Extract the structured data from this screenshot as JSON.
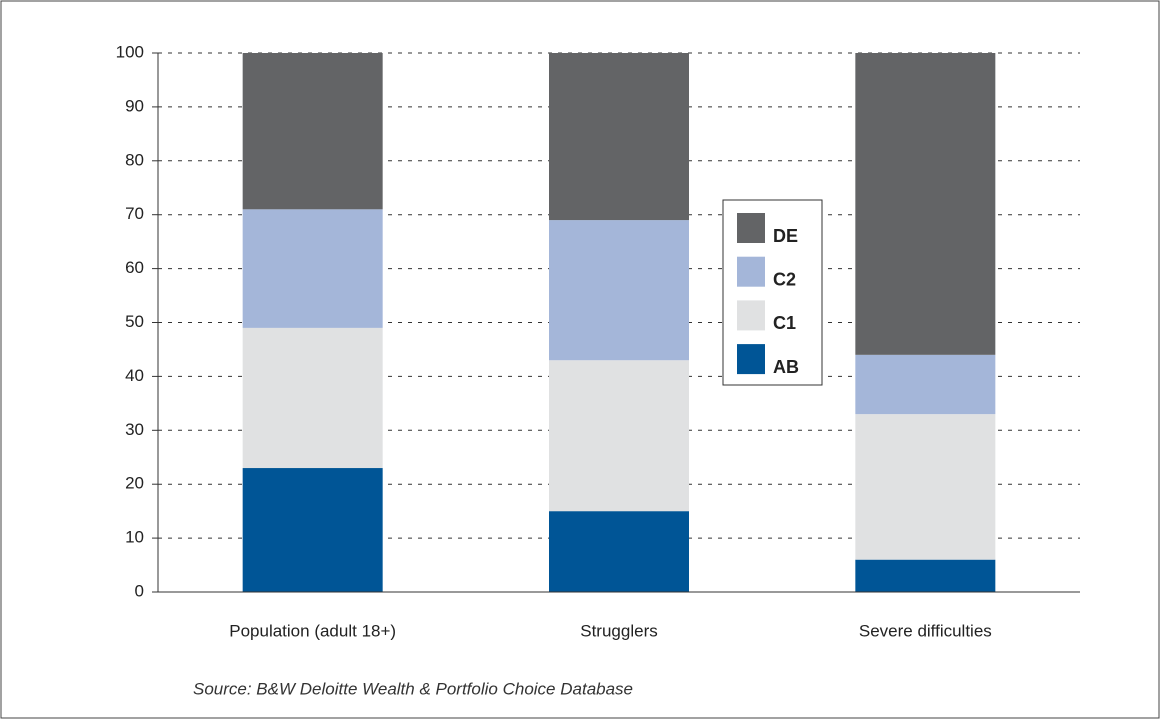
{
  "chart_data": {
    "type": "stacked_bar",
    "categories": [
      "Population (adult 18+)",
      "Strugglers",
      "Severe difficulties"
    ],
    "series": [
      {
        "name": "AB",
        "color": "#005596",
        "values": [
          23,
          15,
          6
        ]
      },
      {
        "name": "C1",
        "color": "#e0e1e2",
        "values": [
          26,
          28,
          27
        ]
      },
      {
        "name": "C2",
        "color": "#a4b6d9",
        "values": [
          22,
          26,
          11
        ]
      },
      {
        "name": "DE",
        "color": "#636466",
        "values": [
          29,
          31,
          56
        ]
      }
    ],
    "ylim": [
      0,
      100
    ],
    "yticks": [
      0,
      10,
      20,
      30,
      40,
      50,
      60,
      70,
      80,
      90,
      100
    ],
    "grid": true,
    "source": "Source: B&W Deloitte Wealth & Portfolio Choice Database"
  }
}
